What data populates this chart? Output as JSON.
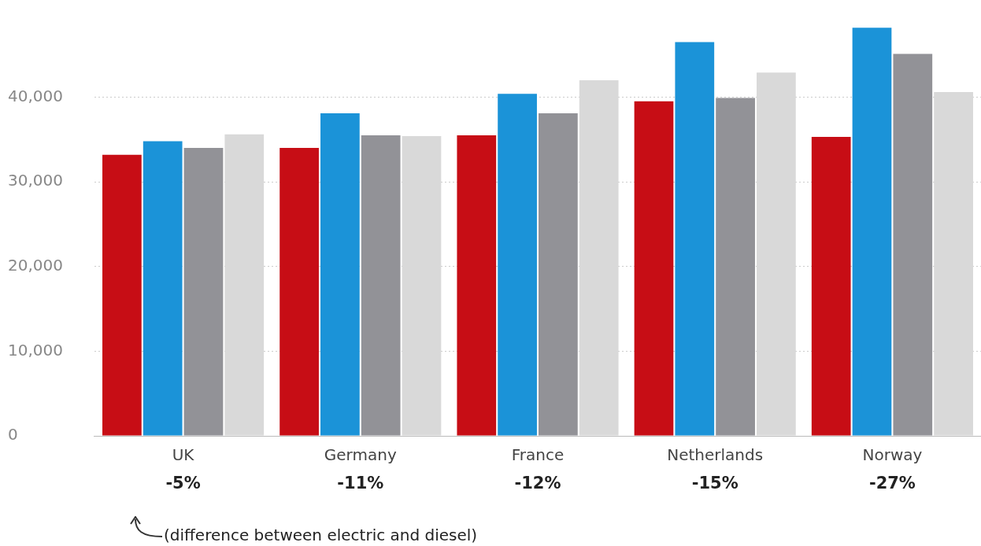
{
  "chart_data": {
    "type": "bar",
    "categories": [
      "UK",
      "Germany",
      "France",
      "Netherlands",
      "Norway"
    ],
    "series": [
      {
        "color": "#c70d15",
        "values": [
          33200,
          34000,
          35500,
          39500,
          35300
        ]
      },
      {
        "color": "#1b93d8",
        "values": [
          34800,
          38100,
          40400,
          46500,
          48200
        ]
      },
      {
        "color": "#929297",
        "values": [
          34000,
          35500,
          38100,
          39900,
          45100
        ]
      },
      {
        "color": "#d9d9d9",
        "values": [
          35600,
          35400,
          42000,
          42900,
          40600
        ]
      }
    ],
    "ylim": [
      0,
      48500
    ],
    "yticks": [
      0,
      {
        "value": 10000,
        "label": "10,000"
      },
      {
        "value": 20000,
        "label": "20,000"
      },
      {
        "value": 30000,
        "label": "30,000"
      },
      {
        "value": 40000,
        "label": "40,000"
      }
    ],
    "grid": "y",
    "legend": false,
    "annotations": [
      "-5%",
      "-11%",
      "-12%",
      "-15%",
      "-27%",
      "(difference between electric and diesel)"
    ]
  }
}
